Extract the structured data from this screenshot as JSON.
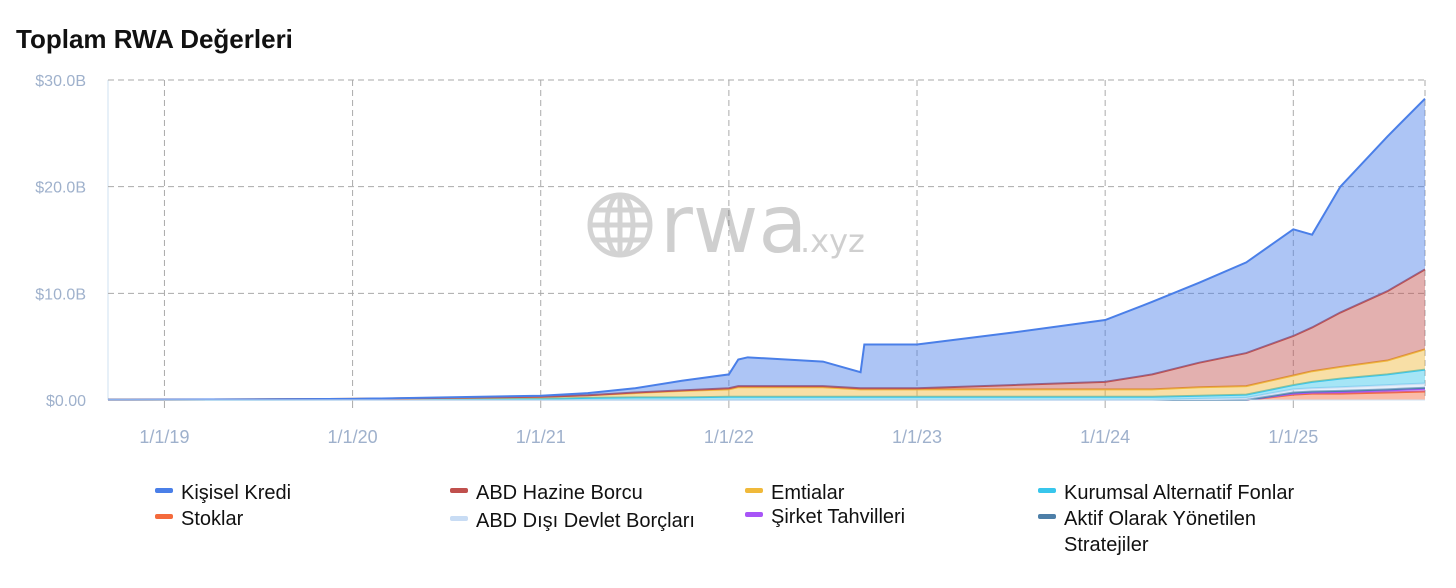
{
  "title": "Toplam RWA Değerleri",
  "watermark": {
    "text": "rwa",
    "suffix": ".xyz",
    "icon": "globe-icon"
  },
  "chart_data": {
    "type": "area",
    "stacked": true,
    "ylim": [
      0,
      30
    ],
    "yticks": [
      {
        "value": 0,
        "label": "$0.00"
      },
      {
        "value": 10,
        "label": "$10.0B"
      },
      {
        "value": 20,
        "label": "$20.0B"
      },
      {
        "value": 30,
        "label": "$30.0B"
      }
    ],
    "xlim": [
      2018.7,
      2025.7
    ],
    "xticks": [
      {
        "value": 2019,
        "label": "1/1/19"
      },
      {
        "value": 2020,
        "label": "1/1/20"
      },
      {
        "value": 2021,
        "label": "1/1/21"
      },
      {
        "value": 2022,
        "label": "1/1/22"
      },
      {
        "value": 2023,
        "label": "1/1/23"
      },
      {
        "value": 2024,
        "label": "1/1/24"
      },
      {
        "value": 2025,
        "label": "1/1/25"
      }
    ],
    "grid": true,
    "legend_position": "bottom",
    "x": [
      2018.7,
      2019.0,
      2020.0,
      2021.0,
      2021.25,
      2021.5,
      2021.75,
      2022.0,
      2022.05,
      2022.1,
      2022.5,
      2022.7,
      2022.72,
      2023.0,
      2023.5,
      2024.0,
      2024.25,
      2024.5,
      2024.75,
      2025.0,
      2025.1,
      2025.25,
      2025.5,
      2025.7
    ],
    "series": [
      {
        "name": "Stoklar",
        "color": "#f46a3c",
        "values": [
          0,
          0,
          0,
          0,
          0,
          0,
          0,
          0,
          0,
          0,
          0,
          0,
          0,
          0,
          0,
          0,
          0,
          0,
          0,
          0.5,
          0.6,
          0.6,
          0.7,
          0.8
        ]
      },
      {
        "name": "Şirket Tahvilleri",
        "color": "#a855f7",
        "values": [
          0,
          0,
          0,
          0,
          0,
          0,
          0,
          0,
          0,
          0,
          0,
          0,
          0,
          0,
          0,
          0,
          0,
          0,
          0,
          0.1,
          0.1,
          0.15,
          0.2,
          0.25
        ]
      },
      {
        "name": "Aktif Olarak Yönetilen Stratejiler",
        "color": "#4d7fa8",
        "values": [
          0,
          0,
          0,
          0,
          0,
          0,
          0,
          0,
          0,
          0,
          0,
          0,
          0,
          0,
          0,
          0,
          0,
          0,
          0,
          0.1,
          0.1,
          0.1,
          0.1,
          0.1
        ]
      },
      {
        "name": "ABD Dışı Devlet Borçları",
        "color": "#c8dcf4",
        "values": [
          0,
          0,
          0,
          0,
          0,
          0,
          0,
          0,
          0,
          0,
          0,
          0,
          0,
          0,
          0,
          0,
          0,
          0.1,
          0.2,
          0.3,
          0.3,
          0.35,
          0.4,
          0.4
        ]
      },
      {
        "name": "Kurumsal Alternatif Fonlar",
        "color": "#38c6ec",
        "values": [
          0.02,
          0.03,
          0.05,
          0.1,
          0.2,
          0.25,
          0.25,
          0.3,
          0.3,
          0.3,
          0.3,
          0.3,
          0.3,
          0.3,
          0.3,
          0.3,
          0.3,
          0.3,
          0.3,
          0.4,
          0.6,
          0.8,
          1.0,
          1.3
        ]
      },
      {
        "name": "Emtialar",
        "color": "#f0b93a",
        "values": [
          0,
          0,
          0.05,
          0.2,
          0.25,
          0.4,
          0.6,
          0.7,
          0.9,
          0.9,
          0.9,
          0.7,
          0.7,
          0.7,
          0.7,
          0.7,
          0.7,
          0.8,
          0.8,
          0.9,
          1.0,
          1.1,
          1.3,
          1.9
        ]
      },
      {
        "name": "ABD Hazine Borcu",
        "color": "#c0504d",
        "values": [
          0,
          0,
          0,
          0,
          0,
          0.05,
          0.05,
          0.1,
          0.1,
          0.1,
          0.1,
          0.1,
          0.1,
          0.1,
          0.4,
          0.7,
          1.4,
          2.3,
          3.1,
          3.7,
          4.1,
          5.1,
          6.5,
          7.5
        ]
      },
      {
        "name": "Kişisel Kredi",
        "color": "#4a7fe8",
        "values": [
          0,
          0,
          0,
          0.1,
          0.2,
          0.4,
          0.9,
          1.3,
          2.5,
          2.7,
          2.3,
          1.5,
          4.1,
          4.1,
          4.9,
          5.8,
          6.8,
          7.5,
          8.5,
          10.0,
          8.7,
          11.8,
          14.5,
          16.0
        ]
      }
    ]
  },
  "legend": [
    {
      "label": "Kişisel Kredi",
      "color": "#4a7fe8"
    },
    {
      "label": "Stoklar",
      "color": "#f46a3c"
    },
    {
      "label": "ABD Hazine Borcu",
      "color": "#c0504d"
    },
    {
      "label": "ABD Dışı Devlet Borçları",
      "color": "#c8dcf4"
    },
    {
      "label": "Emtialar",
      "color": "#f0b93a"
    },
    {
      "label": "Şirket Tahvilleri",
      "color": "#a855f7"
    },
    {
      "label": "Kurumsal Alternatif Fonlar",
      "color": "#38c6ec"
    },
    {
      "label": "Aktif Olarak Yönetilen Stratejiler",
      "color": "#4d7fa8"
    }
  ]
}
